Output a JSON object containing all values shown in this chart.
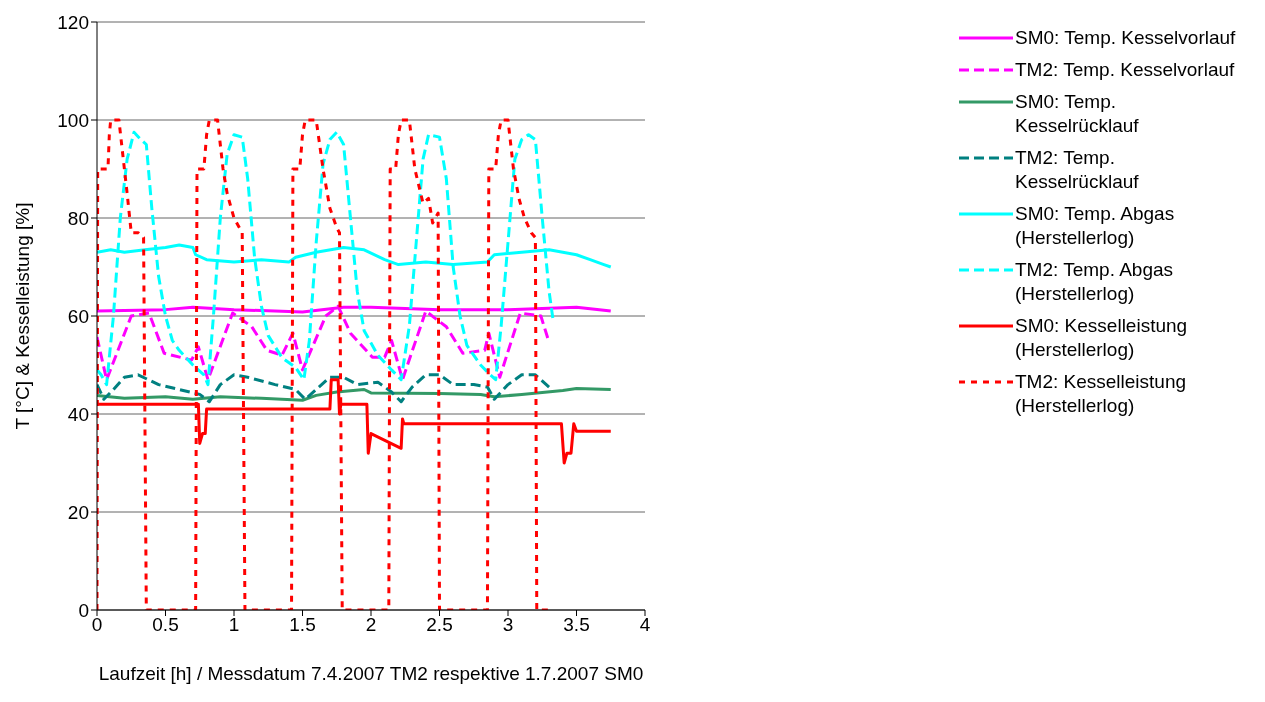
{
  "chart_data": {
    "type": "line",
    "xlabel": "Laufzeit [h] / Messdatum 7.4.2007 TM2  respektive 1.7.2007 SM0",
    "ylabel": "T [°C] & Kesselleistung [%]",
    "xlim": [
      0,
      4
    ],
    "xticks": [
      0,
      0.5,
      1,
      1.5,
      2,
      2.5,
      3,
      3.5,
      4
    ],
    "ylim": [
      0,
      120
    ],
    "yticks": [
      0,
      20,
      40,
      60,
      80,
      100,
      120
    ],
    "grid": "y",
    "legend": "right",
    "marker": "none",
    "series": [
      {
        "name": "SM0: Temp. Kesselvorlauf",
        "color": "#ff00ff",
        "line_style": "solid",
        "x": [
          0,
          0.5,
          0.7,
          1,
          1.5,
          1.8,
          2.0,
          2.5,
          3,
          3.5,
          3.75
        ],
        "values": [
          61,
          61.3,
          61.8,
          61.3,
          60.8,
          61.8,
          61.8,
          61.3,
          61.3,
          61.8,
          61
        ]
      },
      {
        "name": "TM2: Temp. Kesselvorlauf",
        "color": "#ff00ff",
        "line_style": "dashed",
        "x": [
          0,
          0.07,
          0.25,
          0.38,
          0.49,
          0.69,
          0.74,
          0.81,
          0.99,
          1.13,
          1.24,
          1.35,
          1.43,
          1.5,
          1.67,
          1.76,
          1.85,
          2.01,
          2.1,
          2.15,
          2.23,
          2.4,
          2.55,
          2.67,
          2.83,
          2.86,
          2.94,
          3.09,
          3.24,
          3.29
        ],
        "values": [
          55.7,
          47,
          60,
          60.6,
          52.4,
          51,
          53.7,
          47,
          60.6,
          57.8,
          53,
          52,
          56.5,
          49,
          60,
          62,
          56.5,
          51.6,
          51.6,
          55,
          47,
          61,
          57.8,
          52.4,
          53,
          56.5,
          47.5,
          60.6,
          60,
          55.5
        ]
      },
      {
        "name": "SM0: Temp. Kesselrücklauf",
        "color": "#339966",
        "line_style": "solid",
        "x": [
          0,
          0.2,
          0.5,
          0.7,
          0.9,
          1.2,
          1.5,
          1.6,
          1.75,
          1.95,
          2.0,
          2.5,
          2.8,
          2.9,
          3.1,
          3.4,
          3.5,
          3.75
        ],
        "values": [
          43.8,
          43.2,
          43.5,
          43,
          43.5,
          43.2,
          42.8,
          43.8,
          44.5,
          45,
          44.3,
          44.2,
          44,
          43.5,
          44,
          44.8,
          45.2,
          45
        ]
      },
      {
        "name": "TM2: Temp. Kesselrücklauf",
        "color": "#008080",
        "line_style": "dashed",
        "x": [
          0,
          0.05,
          0.12,
          0.2,
          0.3,
          0.45,
          0.6,
          0.75,
          0.82,
          0.9,
          1.0,
          1.1,
          1.3,
          1.45,
          1.52,
          1.6,
          1.7,
          1.8,
          1.9,
          2.05,
          2.15,
          2.22,
          2.3,
          2.4,
          2.5,
          2.6,
          2.75,
          2.85,
          2.9,
          3.0,
          3.1,
          3.2,
          3.3
        ],
        "values": [
          46,
          43,
          45,
          47.5,
          48,
          46,
          45,
          44,
          42.5,
          46,
          48,
          47.5,
          46,
          45,
          43,
          45,
          47.5,
          47.5,
          46,
          46.5,
          44.5,
          42.5,
          45.5,
          48,
          48,
          46,
          46,
          45.5,
          43,
          46,
          48,
          48,
          45.5
        ]
      },
      {
        "name": "SM0: Temp. Abgas (Herstellerlog)",
        "color": "#00ffff",
        "line_style": "solid",
        "x": [
          0,
          0.1,
          0.2,
          0.35,
          0.5,
          0.6,
          0.7,
          0.72,
          0.8,
          1.0,
          1.2,
          1.4,
          1.45,
          1.6,
          1.8,
          1.95,
          2.1,
          2.2,
          2.4,
          2.6,
          2.85,
          2.9,
          3.1,
          3.3,
          3.5,
          3.6,
          3.7,
          3.75
        ],
        "values": [
          73,
          73.5,
          73,
          73.5,
          74,
          74.5,
          74,
          72.5,
          71.5,
          71,
          71.5,
          71,
          72,
          73,
          74,
          73.5,
          71.5,
          70.5,
          71,
          70.5,
          71,
          72.5,
          73,
          73.5,
          72.5,
          71.5,
          70.5,
          70
        ]
      },
      {
        "name": "TM2: Temp. Abgas (Herstellerlog)",
        "color": "#00ffff",
        "line_style": "dashed",
        "x": [
          0,
          0.03,
          0.07,
          0.12,
          0.17,
          0.22,
          0.27,
          0.32,
          0.36,
          0.4,
          0.45,
          0.5,
          0.55,
          0.6,
          0.7,
          0.78,
          0.81,
          0.85,
          0.9,
          0.95,
          1.0,
          1.06,
          1.1,
          1.15,
          1.2,
          1.25,
          1.35,
          1.45,
          1.51,
          1.55,
          1.6,
          1.65,
          1.7,
          1.75,
          1.8,
          1.85,
          1.9,
          1.95,
          2.05,
          2.15,
          2.22,
          2.28,
          2.33,
          2.38,
          2.42,
          2.5,
          2.55,
          2.6,
          2.65,
          2.7,
          2.8,
          2.87,
          2.91,
          2.95,
          3.0,
          3.05,
          3.1,
          3.15,
          3.2,
          3.25,
          3.3,
          3.33
        ],
        "values": [
          49,
          48,
          46,
          60,
          80,
          92,
          97.5,
          96,
          95,
          82,
          68,
          60,
          55,
          53,
          50,
          48,
          46,
          60,
          80,
          93,
          97,
          96.5,
          88,
          72,
          62,
          56,
          51.5,
          49.5,
          47,
          55,
          75,
          91,
          96,
          97.5,
          95,
          80,
          65,
          57,
          52,
          49,
          47,
          58,
          75,
          92,
          97,
          96.5,
          88,
          70,
          60,
          54,
          50,
          48,
          47,
          58,
          75,
          92,
          96,
          97,
          96,
          80,
          65,
          59
        ]
      },
      {
        "name": "SM0: Kesselleistung (Herstellerlog)",
        "color": "#ff0000",
        "line_style": "solid",
        "x": [
          0,
          0.74,
          0.75,
          0.77,
          0.79,
          0.8,
          1.7,
          1.71,
          1.76,
          1.77,
          1.78,
          1.97,
          1.98,
          2.0,
          2.22,
          2.23,
          2.24,
          3.39,
          3.41,
          3.43,
          3.46,
          3.48,
          3.5,
          3.75
        ],
        "values": [
          42,
          42,
          34,
          36,
          36,
          41,
          41,
          47,
          47,
          40,
          42,
          42,
          32,
          36,
          33,
          39,
          38,
          38,
          30,
          32,
          32,
          38,
          36.5,
          36.5
        ]
      },
      {
        "name": "TM2: Kesselleistung (Herstellerlog)",
        "color": "#ff0000",
        "line_style": "dotted",
        "x": [
          0,
          0.005,
          0.08,
          0.09,
          0.1,
          0.16,
          0.18,
          0.22,
          0.25,
          0.3,
          0.34,
          0.36,
          0.72,
          0.73,
          0.78,
          0.8,
          0.82,
          0.88,
          0.92,
          0.95,
          1.0,
          1.04,
          1.06,
          1.08,
          1.42,
          1.43,
          1.48,
          1.5,
          1.52,
          1.6,
          1.65,
          1.7,
          1.75,
          1.77,
          1.79,
          2.13,
          2.14,
          2.18,
          2.2,
          2.22,
          2.28,
          2.32,
          2.38,
          2.42,
          2.45,
          2.49,
          2.5,
          2.85,
          2.86,
          2.91,
          2.93,
          2.95,
          3.0,
          3.04,
          3.08,
          3.12,
          3.17,
          3.2,
          3.21,
          3.33
        ],
        "values": [
          0,
          90,
          90,
          97,
          100,
          100,
          95,
          85,
          77,
          77,
          76,
          0,
          0,
          90,
          90,
          97,
          100,
          100,
          90,
          85,
          80,
          78,
          77,
          0,
          0,
          90,
          90,
          97,
          100,
          100,
          90,
          82,
          78,
          77,
          0,
          0,
          90,
          90,
          97,
          100,
          100,
          90,
          83,
          84,
          79,
          81,
          0,
          0,
          90,
          90,
          97,
          100,
          100,
          90,
          84,
          80,
          77,
          76,
          0,
          0
        ]
      }
    ]
  }
}
